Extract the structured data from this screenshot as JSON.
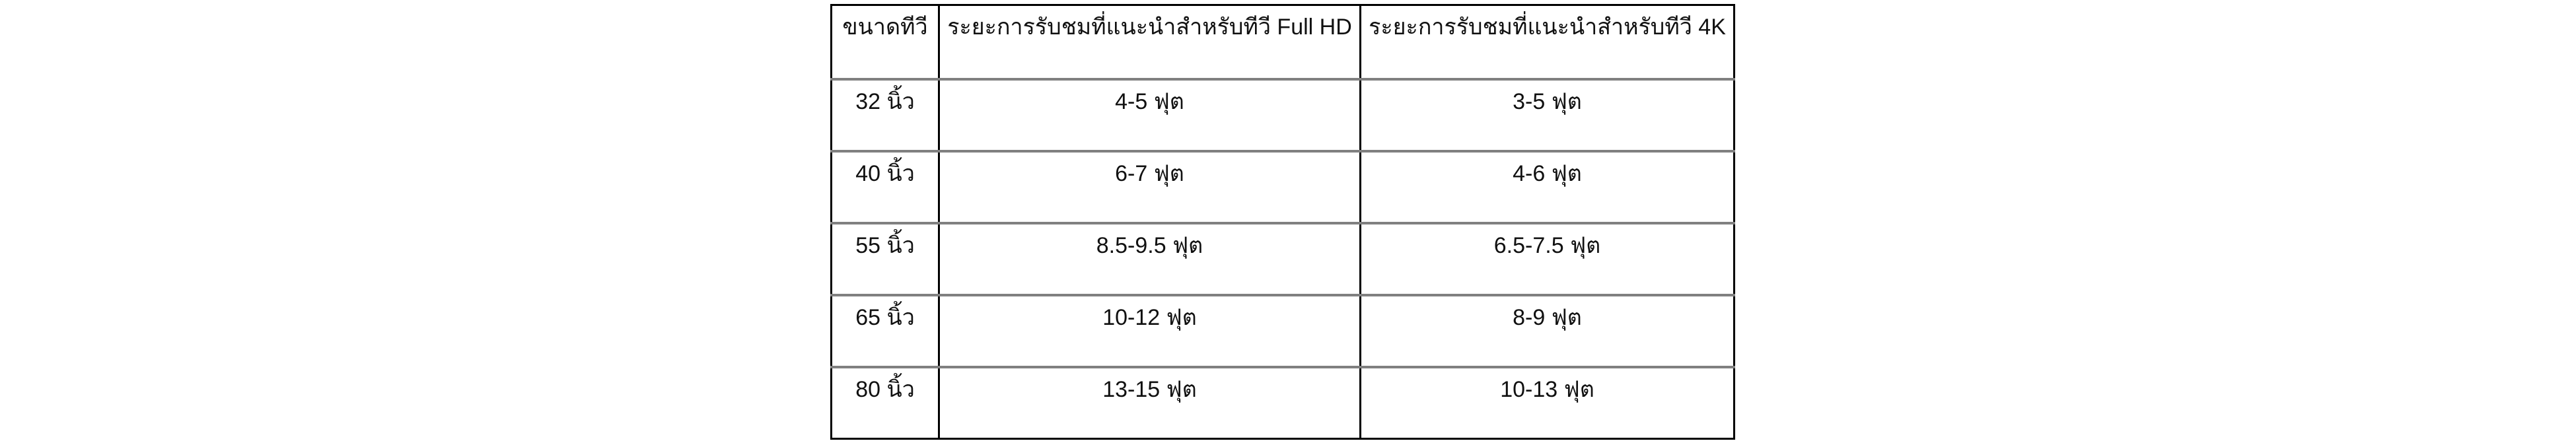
{
  "table": {
    "title_semantic": "tv-viewing-distance-table",
    "headers": {
      "tv_size": "ขนาดทีวี",
      "distance_full_hd": "ระยะการรับชมที่แนะนำสำหรับทีวี Full HD",
      "distance_4k": "ระยะการรับชมที่แนะนำสำหรับทีวี 4K"
    },
    "rows": [
      {
        "size": "32 นิ้ว",
        "full_hd": "4-5 ฟุต",
        "uhd_4k": "3-5 ฟุต"
      },
      {
        "size": "40 นิ้ว",
        "full_hd": "6-7 ฟุต",
        "uhd_4k": "4-6 ฟุต"
      },
      {
        "size": "55 นิ้ว",
        "full_hd": "8.5-9.5 ฟุต",
        "uhd_4k": "6.5-7.5 ฟุต"
      },
      {
        "size": "65 นิ้ว",
        "full_hd": "10-12 ฟุต",
        "uhd_4k": "8-9 ฟุต"
      },
      {
        "size": "80 นิ้ว",
        "full_hd": "13-15 ฟุต",
        "uhd_4k": "10-13 ฟุต"
      }
    ],
    "colors": {
      "page_background": "#ffffff",
      "border_outer": "#000000",
      "border_inner_horizontal": "#808080",
      "text": "#111111"
    }
  }
}
